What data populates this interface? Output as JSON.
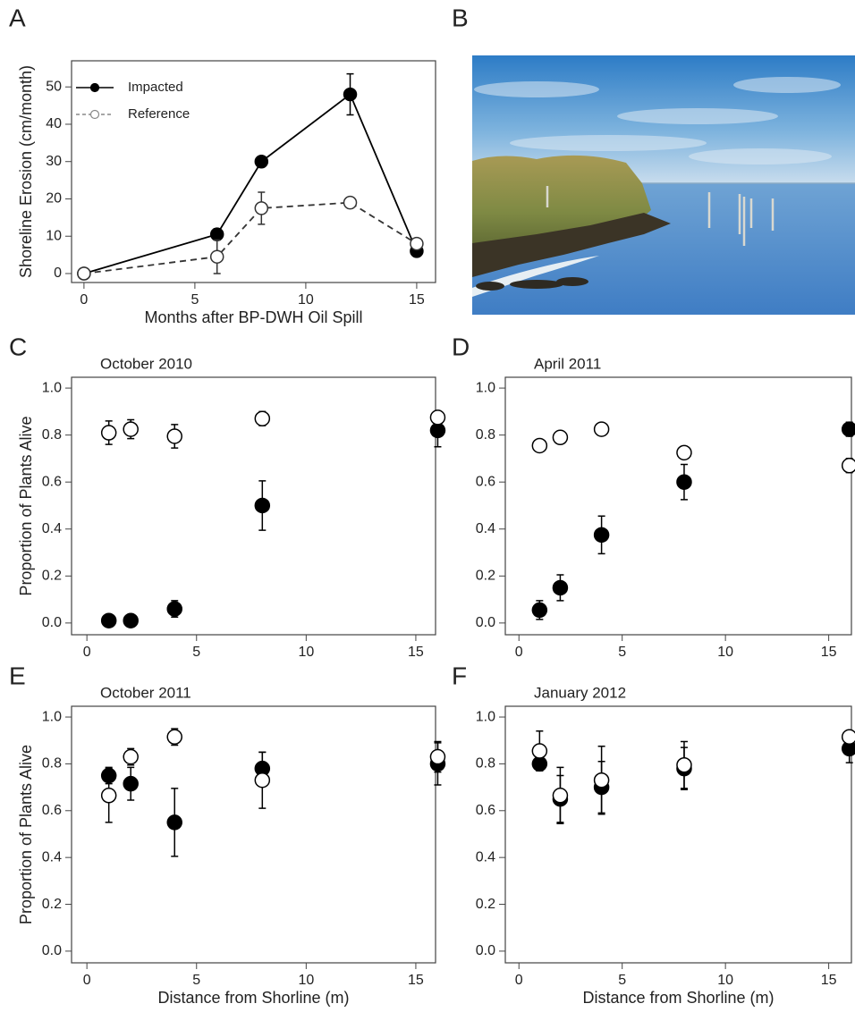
{
  "chart_data": [
    {
      "type": "line",
      "panel_label": "A",
      "x_label": "Months after BP-DWH Oil Spill",
      "y_label": "Shoreline Erosion (cm/month)",
      "x": [
        0,
        6,
        8,
        12,
        15
      ],
      "series": [
        {
          "name": "Impacted",
          "color": "#000000",
          "marker_fill": "#000000",
          "line_style": "solid",
          "values": [
            0,
            10.5,
            30,
            48,
            6
          ],
          "errors": [
            null,
            1.5,
            null,
            5.5,
            null
          ]
        },
        {
          "name": "Reference",
          "color": "#333333",
          "marker_fill": "#ffffff",
          "line_style": "dashed",
          "values": [
            0,
            4.5,
            17.5,
            19,
            8
          ],
          "errors": [
            null,
            4.5,
            4.3,
            null,
            null
          ]
        }
      ],
      "xlim": [
        -0.56,
        15.85
      ],
      "ylim": [
        -2.4,
        57
      ],
      "xticks": [
        0,
        5,
        10,
        15
      ],
      "yticks": [
        0,
        10,
        20,
        30,
        40,
        50
      ],
      "legend": "upper left"
    },
    {
      "type": "image",
      "panel_label": "B"
    },
    {
      "type": "scatter",
      "panel_label": "C",
      "title": "October 2010",
      "y_label": "Proportion of Plants Alive",
      "x": [
        1,
        2,
        4,
        8,
        16
      ],
      "series": [
        {
          "color": "#000000",
          "marker_fill": "#000000",
          "values": [
            0.01,
            0.01,
            0.06,
            0.5,
            0.82
          ],
          "errors": [
            null,
            null,
            0.035,
            0.105,
            0.07
          ]
        },
        {
          "color": "#000000",
          "marker_fill": "#ffffff",
          "values": [
            0.81,
            0.825,
            0.795,
            0.87,
            0.875
          ],
          "errors": [
            0.05,
            0.04,
            0.05,
            0.03,
            0.02
          ]
        }
      ],
      "xlim": [
        -0.7,
        15.9
      ],
      "ylim": [
        -0.05,
        1.046
      ],
      "xticks": [
        0,
        5,
        10,
        15
      ],
      "yticks": [
        {
          "value": 0,
          "label": "0.0"
        },
        0.2,
        0.4,
        0.6,
        0.8,
        {
          "value": 1,
          "label": "1.0"
        }
      ]
    },
    {
      "type": "scatter",
      "panel_label": "D",
      "title": "April 2011",
      "x": [
        1,
        2,
        4,
        8,
        16
      ],
      "series": [
        {
          "color": "#000000",
          "marker_fill": "#000000",
          "values": [
            0.055,
            0.15,
            0.375,
            0.6,
            0.825
          ],
          "errors": [
            0.04,
            0.055,
            0.08,
            0.075,
            0.03
          ]
        },
        {
          "color": "#000000",
          "marker_fill": "#ffffff",
          "values": [
            0.755,
            0.79,
            0.825,
            0.725,
            0.67
          ],
          "errors": [
            null,
            null,
            null,
            null,
            0.03
          ]
        }
      ],
      "xlim": [
        -0.66,
        16.1
      ],
      "ylim": [
        -0.05,
        1.046
      ],
      "xticks": [
        0,
        5,
        10,
        15
      ],
      "yticks": [
        {
          "value": 0,
          "label": "0.0"
        },
        0.2,
        0.4,
        0.6,
        0.8,
        {
          "value": 1,
          "label": "1.0"
        }
      ]
    },
    {
      "type": "scatter",
      "panel_label": "E",
      "title": "October 2011",
      "x_label": "Distance from Shorline (m)",
      "y_label": "Proportion of Plants Alive",
      "x": [
        1,
        2,
        4,
        8,
        16
      ],
      "series": [
        {
          "color": "#000000",
          "marker_fill": "#000000",
          "values": [
            0.75,
            0.715,
            0.55,
            0.78,
            0.8
          ],
          "errors": [
            0.035,
            0.07,
            0.145,
            0.07,
            0.09
          ]
        },
        {
          "color": "#000000",
          "marker_fill": "#ffffff",
          "values": [
            0.665,
            0.83,
            0.915,
            0.73,
            0.83
          ],
          "errors": [
            0.115,
            0.035,
            0.035,
            0.12,
            0.065
          ]
        }
      ],
      "xlim": [
        -0.7,
        15.9
      ],
      "ylim": [
        -0.05,
        1.046
      ],
      "xticks": [
        0,
        5,
        10,
        15
      ],
      "yticks": [
        {
          "value": 0,
          "label": "0.0"
        },
        0.2,
        0.4,
        0.6,
        0.8,
        {
          "value": 1,
          "label": "1.0"
        }
      ]
    },
    {
      "type": "scatter",
      "panel_label": "F",
      "title": "January 2012",
      "x_label": "Distance from Shorline (m)",
      "x": [
        1,
        2,
        4,
        8,
        16
      ],
      "series": [
        {
          "color": "#000000",
          "marker_fill": "#000000",
          "values": [
            0.8,
            0.65,
            0.7,
            0.78,
            0.865
          ],
          "errors": [
            0.03,
            0.1,
            0.11,
            0.09,
            0.06
          ]
        },
        {
          "color": "#000000",
          "marker_fill": "#ffffff",
          "values": [
            0.855,
            0.665,
            0.73,
            0.795,
            0.915
          ],
          "errors": [
            0.085,
            0.12,
            0.145,
            0.1,
            0.01
          ]
        }
      ],
      "xlim": [
        -0.66,
        16.1
      ],
      "ylim": [
        -0.05,
        1.046
      ],
      "xticks": [
        0,
        5,
        10,
        15
      ],
      "yticks": [
        {
          "value": 0,
          "label": "0.0"
        },
        0.2,
        0.4,
        0.6,
        0.8,
        {
          "value": 1,
          "label": "1.0"
        }
      ]
    }
  ]
}
